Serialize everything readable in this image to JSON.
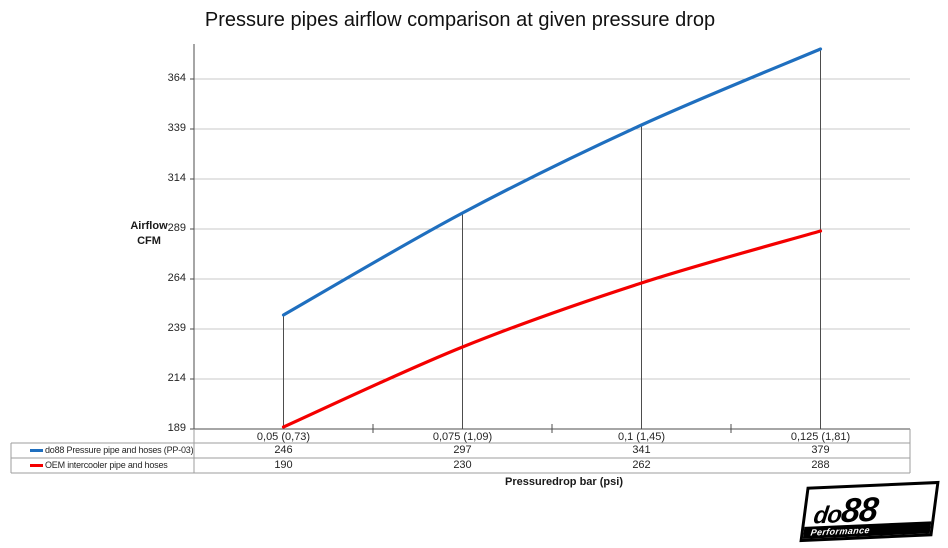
{
  "chart_data": {
    "type": "line",
    "title": "Pressure pipes airflow comparison at given pressure drop",
    "ylabel": "Airflow CFM",
    "xlabel": "Pressuredrop bar (psi)",
    "categories": [
      "0,05 (0,73)",
      "0,075 (1,09)",
      "0,1 (1,45)",
      "0,125 (1,81)"
    ],
    "series": [
      {
        "name": "do88 Pressure pipe and hoses (PP-03)",
        "color": "#1f6fbf",
        "values": [
          246,
          297,
          341,
          379
        ]
      },
      {
        "name": "OEM intercooler pipe and hoses",
        "color": "#f40000",
        "values": [
          190,
          230,
          262,
          288
        ]
      }
    ],
    "yticks": [
      189,
      214,
      239,
      264,
      289,
      314,
      339,
      364
    ],
    "ylim": [
      189,
      381.5
    ],
    "grid": true,
    "droplines": true,
    "smooth": true,
    "legend_position": "data-table"
  },
  "logo": {
    "prefix": "do",
    "suffix": "88",
    "tagline": "Performance"
  },
  "colors": {
    "series1": "#1f6fbf",
    "series2": "#f40000",
    "gridline": "#c9c9c9",
    "axis": "#4d4d4d",
    "table_border": "#9e9e9e",
    "text": "#1a1a1a"
  }
}
